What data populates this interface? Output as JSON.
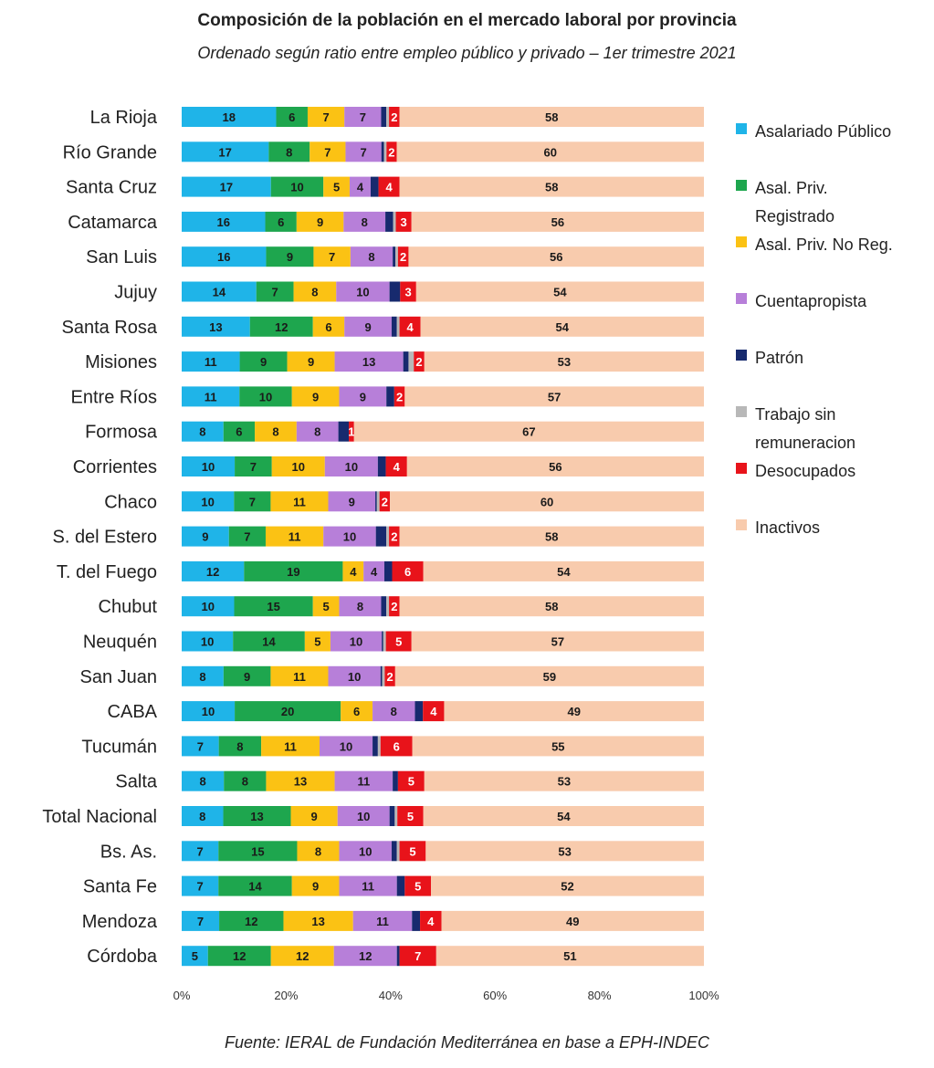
{
  "chart_data": {
    "type": "bar",
    "orientation": "horizontal",
    "stacked": true,
    "normalized": true,
    "title": "Composición de la población en el mercado laboral por provincia",
    "subtitle": "Ordenado según ratio entre empleo público y privado – 1er trimestre 2021",
    "source": "Fuente: IERAL de Fundación Mediterránea en base a EPH-INDEC",
    "xlim": [
      0,
      100
    ],
    "xticks": [
      "0%",
      "20%",
      "40%",
      "60%",
      "80%",
      "100%"
    ],
    "legend_position": "right",
    "categories": [
      "La Rioja",
      "Río Grande",
      "Santa Cruz",
      "Catamarca",
      "San Luis",
      "Jujuy",
      "Santa Rosa",
      "Misiones",
      "Entre Ríos",
      "Formosa",
      "Corrientes",
      "Chaco",
      "S. del Estero",
      "T. del Fuego",
      "Chubut",
      "Neuquén",
      "San Juan",
      "CABA",
      "Tucumán",
      "Salta",
      "Total Nacional",
      "Bs. As.",
      "Santa Fe",
      "Mendoza",
      "Córdoba"
    ],
    "series": [
      {
        "name": "Asalariado Público",
        "legend": [
          "Asalariado Público"
        ],
        "color": "#1fb4e8",
        "label_color": "#1a1a1a",
        "values": [
          18,
          17,
          17,
          16,
          16,
          14,
          13,
          11,
          11,
          8,
          10,
          10,
          9,
          12,
          10,
          10,
          8,
          10,
          7,
          8,
          8,
          7,
          7,
          7,
          5
        ],
        "labels": [
          18,
          17,
          17,
          16,
          16,
          14,
          13,
          11,
          11,
          8,
          10,
          10,
          9,
          12,
          10,
          10,
          8,
          10,
          7,
          8,
          8,
          7,
          7,
          7,
          5
        ]
      },
      {
        "name": "Asal. Priv. Registrado",
        "legend": [
          "Asal. Priv.",
          "Registrado"
        ],
        "color": "#1ea64e",
        "label_color": "#1a1a1a",
        "values": [
          6,
          8,
          10,
          6,
          9,
          7,
          12,
          9,
          10,
          6,
          7,
          7,
          7,
          19,
          15,
          14,
          9,
          20,
          8,
          8,
          13,
          15,
          14,
          12,
          12
        ],
        "labels": [
          6,
          8,
          10,
          6,
          9,
          7,
          12,
          9,
          10,
          6,
          7,
          7,
          7,
          19,
          15,
          14,
          9,
          20,
          8,
          8,
          13,
          15,
          14,
          12,
          12
        ]
      },
      {
        "name": "Asal. Priv. No Reg.",
        "legend": [
          "Asal. Priv. No Reg."
        ],
        "color": "#fbc214",
        "label_color": "#1a1a1a",
        "values": [
          7,
          7,
          5,
          9,
          7,
          8,
          6,
          9,
          9,
          8,
          10,
          11,
          11,
          4,
          5,
          5,
          11,
          6,
          11,
          13,
          9,
          8,
          9,
          13,
          12
        ],
        "labels": [
          7,
          7,
          5,
          9,
          7,
          8,
          6,
          9,
          9,
          8,
          10,
          11,
          11,
          4,
          5,
          5,
          11,
          6,
          11,
          13,
          9,
          8,
          9,
          13,
          12
        ]
      },
      {
        "name": "Cuentapropista",
        "legend": [
          "Cuentapropista"
        ],
        "color": "#b77fd9",
        "label_color": "#1a1a1a",
        "values": [
          7,
          7,
          4,
          8,
          8,
          10,
          9,
          13,
          9,
          8,
          10,
          9,
          10,
          4,
          8,
          10,
          10,
          8,
          10,
          11,
          10,
          10,
          11,
          11,
          12
        ],
        "labels": [
          7,
          7,
          4,
          8,
          8,
          10,
          9,
          13,
          9,
          8,
          10,
          9,
          10,
          4,
          8,
          10,
          10,
          8,
          10,
          11,
          10,
          10,
          11,
          11,
          12
        ]
      },
      {
        "name": "Patrón",
        "legend": [
          "Patrón"
        ],
        "color": "#172a6e",
        "label_color": "#ffffff",
        "values": [
          1,
          0.5,
          1.5,
          1.5,
          0.5,
          2,
          1,
          1,
          1.5,
          2,
          1.5,
          0.3,
          2,
          1.5,
          1,
          0.3,
          0.3,
          1.5,
          1,
          1,
          1,
          1,
          1.5,
          1.5,
          0.5
        ],
        "labels": [
          "",
          "",
          "",
          "",
          "",
          "",
          "",
          "",
          "",
          "",
          "",
          "",
          "",
          "",
          "",
          "",
          "",
          "",
          "",
          "",
          "",
          "",
          "",
          "",
          ""
        ]
      },
      {
        "name": "Trabajo sin remuneracion",
        "legend": [
          "Trabajo sin",
          "remuneracion"
        ],
        "color": "#b8b8b8",
        "label_color": "#1a1a1a",
        "values": [
          0.5,
          0.5,
          0,
          0.5,
          0.5,
          0,
          0.5,
          1,
          0,
          0,
          0,
          0.5,
          0.5,
          0,
          0.5,
          0.5,
          0.5,
          0,
          0.5,
          0,
          0.5,
          0.5,
          0,
          0,
          0
        ],
        "labels": [
          "",
          "",
          "",
          "",
          "",
          "",
          "",
          "",
          "",
          "",
          "",
          "",
          "",
          "",
          "",
          "",
          "",
          "",
          "",
          "",
          "",
          "",
          "",
          "",
          ""
        ]
      },
      {
        "name": "Desocupados",
        "legend": [
          "Desocupados"
        ],
        "color": "#e8131a",
        "label_color": "#ffffff",
        "values": [
          2,
          2,
          4,
          3,
          2,
          3,
          4,
          2,
          2,
          1,
          4,
          2,
          2,
          6,
          2,
          5,
          2,
          4,
          6,
          5,
          5,
          5,
          5,
          4,
          7
        ],
        "labels": [
          2,
          2,
          4,
          3,
          2,
          3,
          4,
          2,
          2,
          1,
          4,
          2,
          2,
          6,
          2,
          5,
          2,
          4,
          6,
          5,
          5,
          5,
          5,
          4,
          7
        ]
      },
      {
        "name": "Inactivos",
        "legend": [
          "Inactivos"
        ],
        "color": "#f8cbad",
        "label_color": "#1a1a1a",
        "values": [
          58,
          60,
          58,
          56,
          56,
          54,
          54,
          53,
          57,
          67,
          56,
          60,
          58,
          54,
          58,
          57,
          59,
          49,
          55,
          53,
          54,
          53,
          52,
          49,
          51
        ],
        "labels": [
          58,
          60,
          58,
          56,
          56,
          54,
          54,
          53,
          57,
          67,
          56,
          60,
          58,
          54,
          58,
          57,
          59,
          49,
          55,
          53,
          54,
          53,
          52,
          49,
          51
        ]
      }
    ]
  }
}
